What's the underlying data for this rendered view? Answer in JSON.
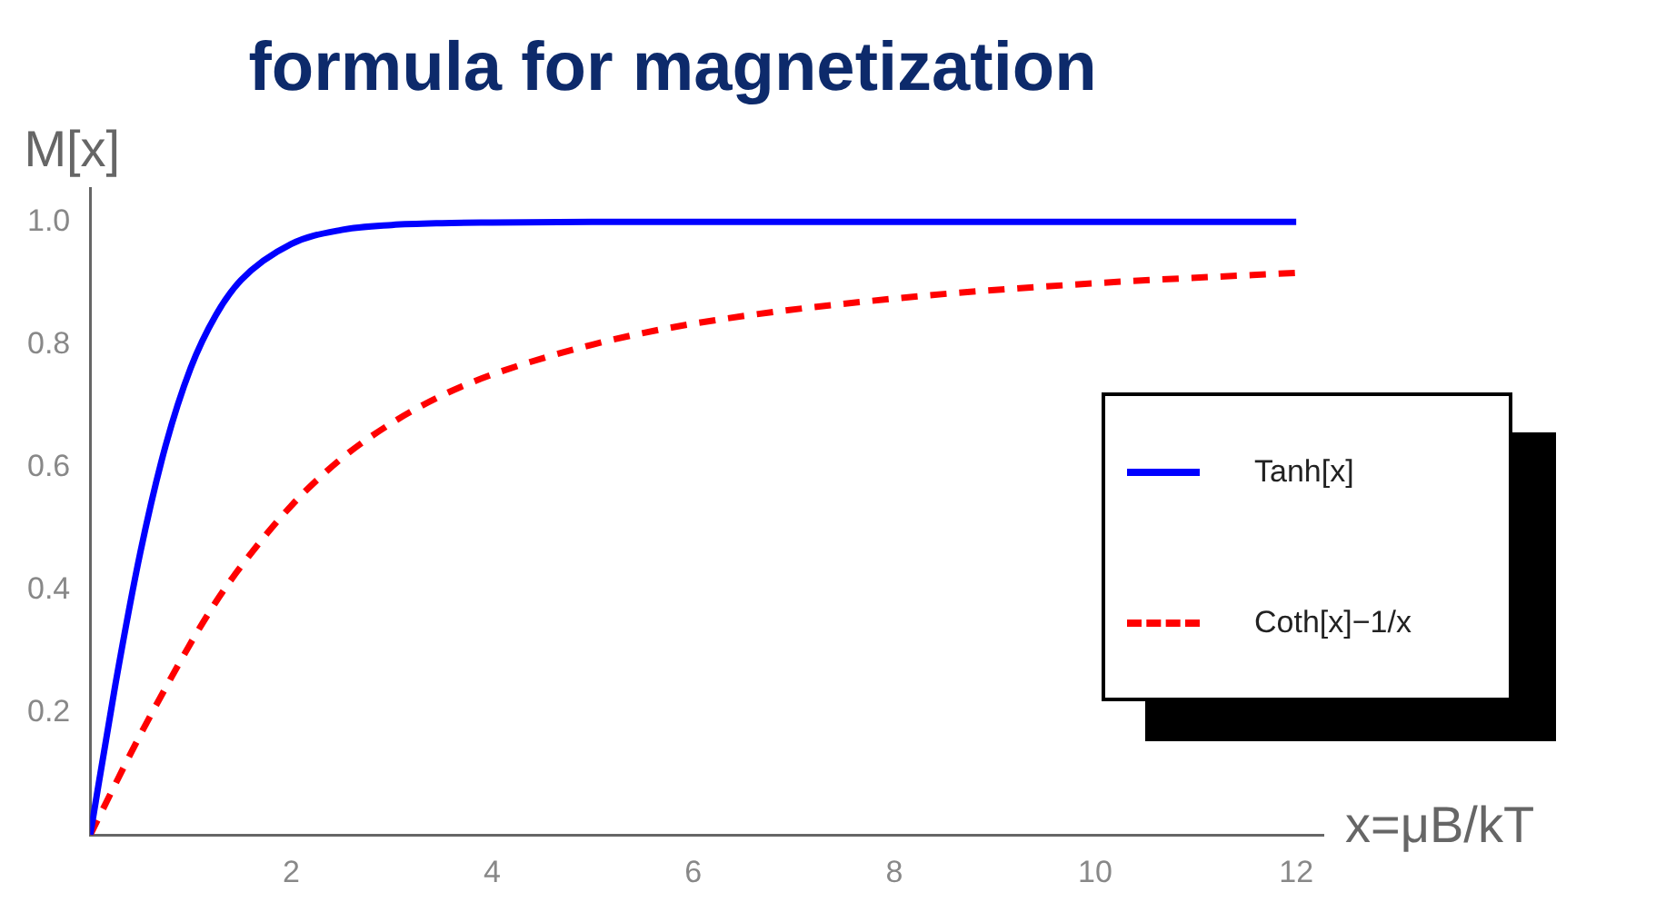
{
  "chart_data": {
    "type": "line",
    "title": "formula for magnetization",
    "xlabel": "x=μB/kT",
    "ylabel": "M[x]",
    "xlim": [
      0,
      12.27
    ],
    "ylim": [
      0,
      1.055
    ],
    "xticks": [
      2,
      4,
      6,
      8,
      10,
      12
    ],
    "yticks": [
      0.2,
      0.4,
      0.6,
      0.8,
      {
        "value": 1,
        "label": "1.0"
      }
    ],
    "grid": false,
    "legend": "right",
    "marker": "none",
    "series": [
      {
        "name": "Tanh[x]",
        "color": "#0000ff",
        "line_style": "solid",
        "x": [
          0,
          0.25,
          0.5,
          0.75,
          1,
          1.25,
          1.5,
          2,
          2.5,
          3,
          3.5,
          4,
          5,
          6,
          8,
          10,
          12
        ],
        "values": [
          0,
          0.245,
          0.462,
          0.635,
          0.762,
          0.848,
          0.905,
          0.964,
          0.987,
          0.995,
          0.998,
          0.999,
          1,
          1,
          1,
          1,
          1
        ]
      },
      {
        "name": "Coth[x]−1/x",
        "color": "#ff0000",
        "line_style": "dashed",
        "x": [
          0,
          0.25,
          0.5,
          0.75,
          1,
          1.25,
          1.5,
          2,
          2.5,
          3,
          3.5,
          4,
          5,
          6,
          8,
          10,
          12
        ],
        "values": [
          0,
          0.083,
          0.164,
          0.24,
          0.313,
          0.38,
          0.438,
          0.537,
          0.614,
          0.672,
          0.717,
          0.751,
          0.8,
          0.834,
          0.875,
          0.9,
          0.917
        ]
      }
    ]
  }
}
